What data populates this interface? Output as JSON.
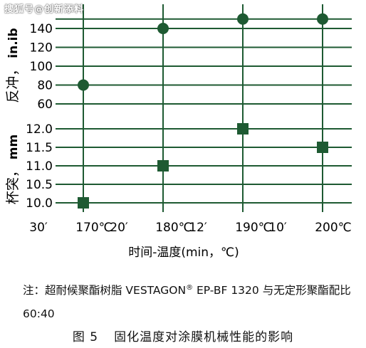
{
  "watermark": "搜狐号@创新添料",
  "chart_data": [
    {
      "type": "scatter",
      "ylabel": "反冲，  in.ib",
      "ylabel_main": "反冲，",
      "ylabel_unit": "in.ib",
      "yticks": [
        60,
        80,
        100,
        120,
        140
      ],
      "ylim": [
        60,
        150
      ],
      "points": [
        {
          "x": "30′ 170℃",
          "y": 80
        },
        {
          "x": "20′ 180℃",
          "y": 140
        },
        {
          "x": "12′ 190℃",
          "y": 150
        },
        {
          "x": "10′ 200℃",
          "y": 150
        }
      ],
      "marker": "circle",
      "color": "#1e5a32"
    },
    {
      "type": "scatter",
      "ylabel": "杯突，  mm",
      "ylabel_main": "杯突，",
      "ylabel_unit": "mm",
      "yticks": [
        10.0,
        10.5,
        11.0,
        11.5,
        12.0
      ],
      "ylim": [
        10.0,
        12.0
      ],
      "points": [
        {
          "x": "30′ 170℃",
          "y": 10.0
        },
        {
          "x": "20′ 180℃",
          "y": 11.0
        },
        {
          "x": "12′ 190℃",
          "y": 12.0
        },
        {
          "x": "10′ 200℃",
          "y": 11.5
        }
      ],
      "marker": "square",
      "color": "#1e5a32"
    }
  ],
  "x_categories": [
    "30′ 170℃",
    "20′ 180℃",
    "12′ 190℃",
    "10′ 200℃"
  ],
  "x_tick_labels": [
    {
      "time": "30′",
      "temp": "170℃"
    },
    {
      "time": "20′",
      "temp": "180℃"
    },
    {
      "time": "12′",
      "temp": "190℃"
    },
    {
      "time": "10′",
      "temp": "200℃"
    }
  ],
  "xlabel": "时间-温度(min，℃)",
  "grid": true,
  "grid_color": "#1e5a32",
  "note": {
    "prefix": "注：超耐候聚酯树脂 VESTAGON",
    "sup": "®",
    "suffix": " EP-BF 1320 与无定形聚酯配比 60:40"
  },
  "caption": {
    "number": "图 5",
    "text": "固化温度对涂膜机械性能的影响"
  }
}
